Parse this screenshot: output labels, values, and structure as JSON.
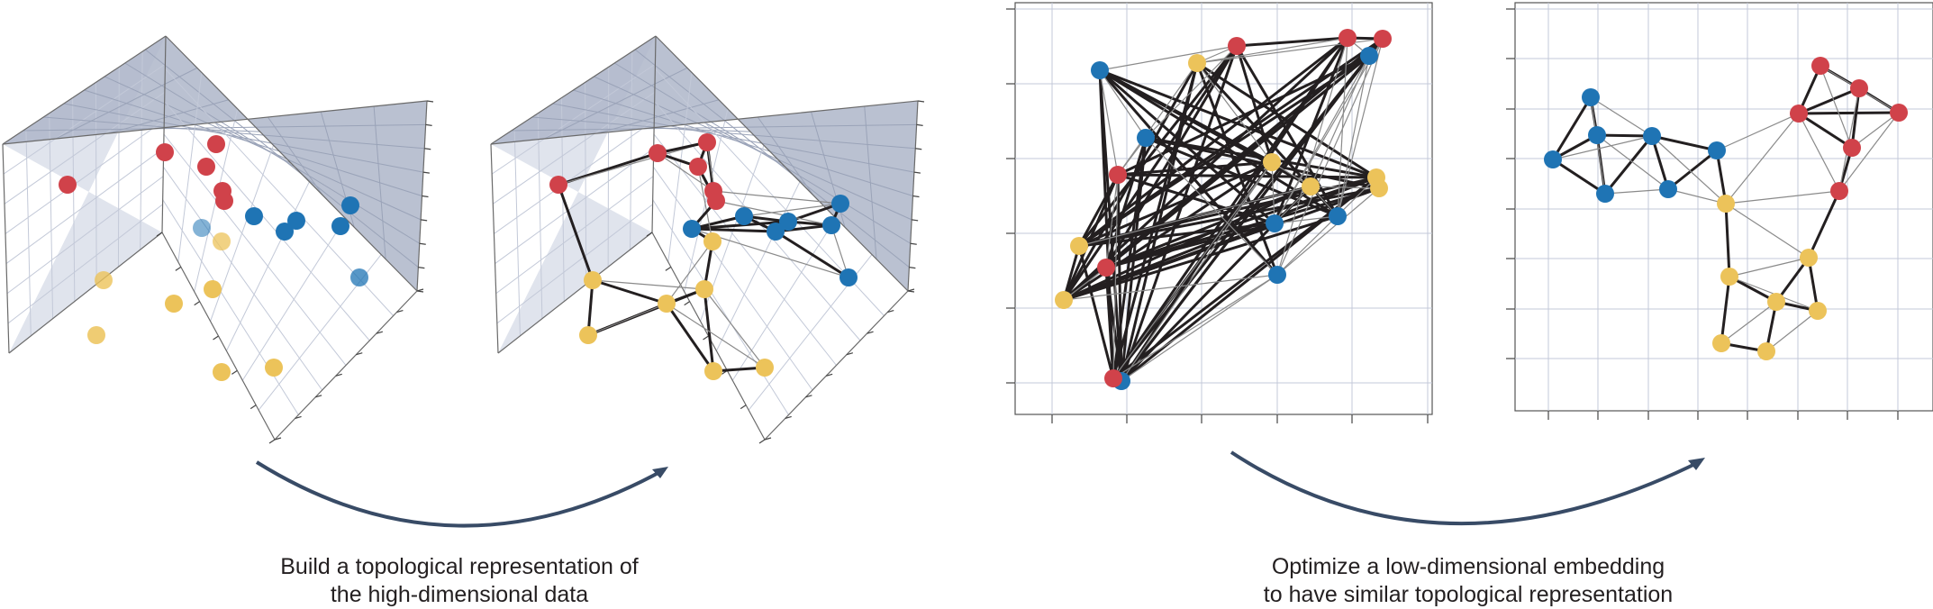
{
  "captions": {
    "left": {
      "line1": "Build a topological representation of",
      "line2": "the high-dimensional data"
    },
    "right": {
      "line1": "Optimize a low-dimensional embedding",
      "line2": "to have similar topological representation"
    }
  },
  "colors": {
    "red": "#d0424a",
    "blue": "#1f74b4",
    "yellow": "#ecc35a",
    "edge": "#231f20",
    "arrow": "#384b66",
    "grid": "#c3c9d8",
    "pane": "#d3d9e5",
    "pane_dark": "#aeb6c9",
    "frame": "#4a4a4a"
  },
  "panels": [
    {
      "id": "3d-points",
      "kind": "3d-scatter"
    },
    {
      "id": "3d-graph",
      "kind": "3d-graph"
    },
    {
      "id": "2d-initial",
      "kind": "2d-graph"
    },
    {
      "id": "2d-optimized",
      "kind": "2d-graph"
    }
  ]
}
